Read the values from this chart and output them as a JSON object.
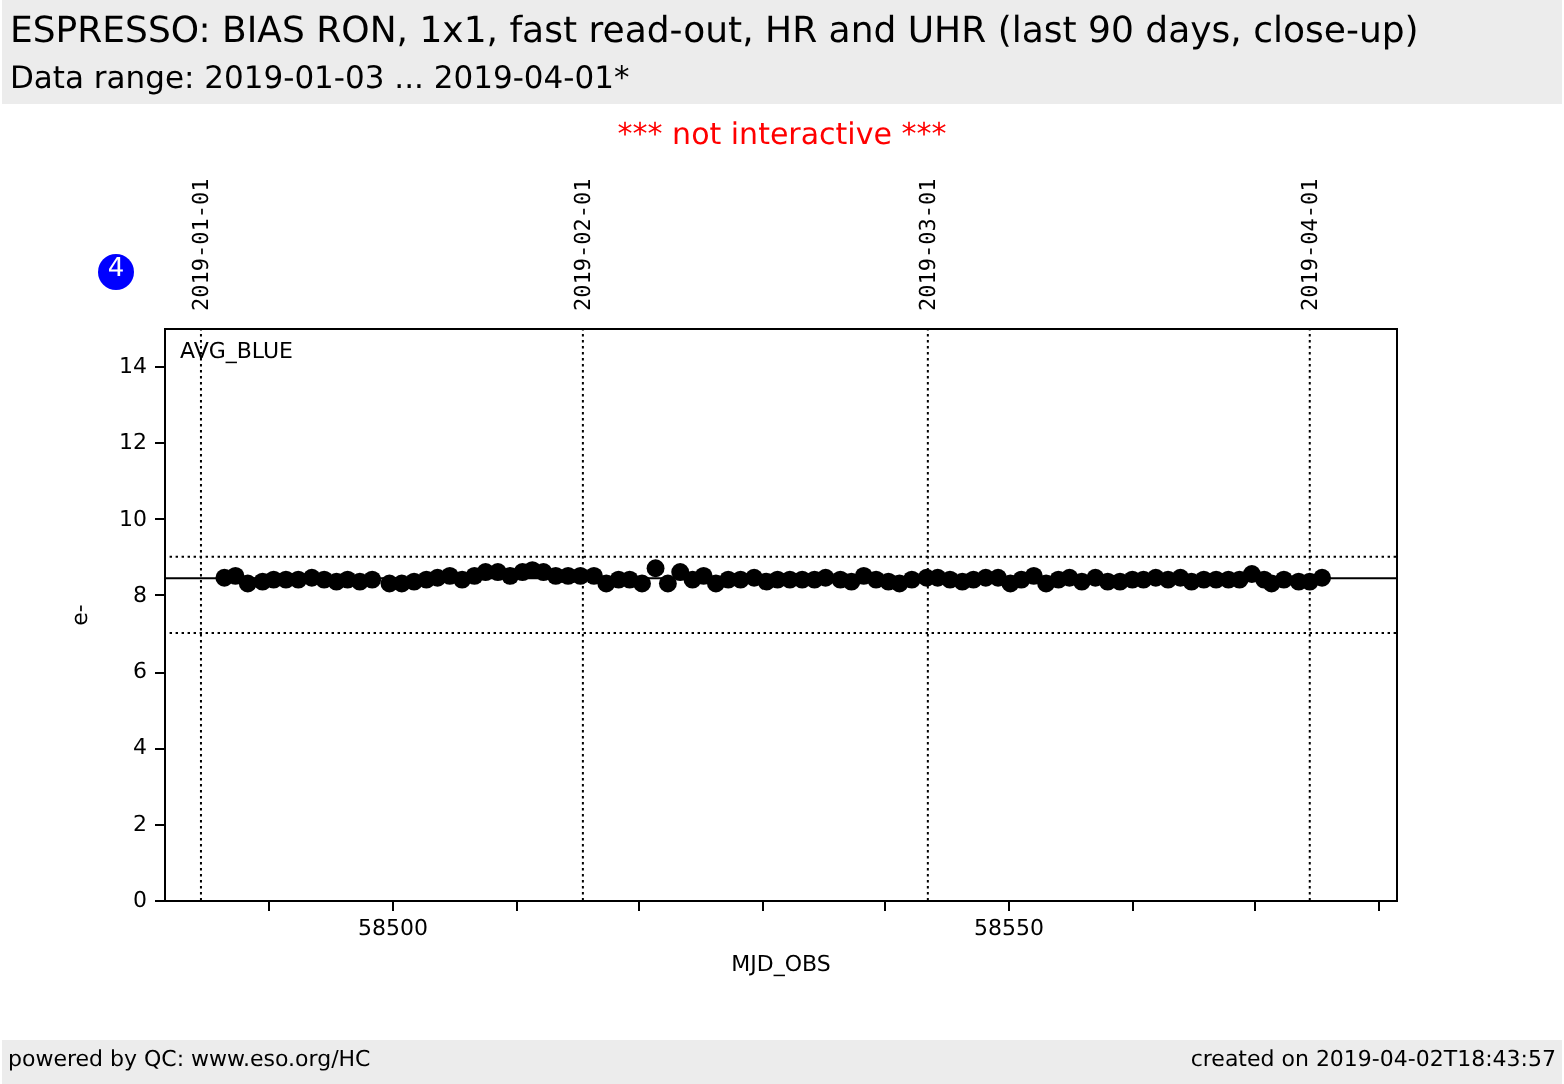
{
  "chart_data": {
    "type": "scatter",
    "title": "ESPRESSO: BIAS RON, 1x1, fast read-out, HR and UHR (last 90 days, close-up)",
    "subtitle": "Data range: 2019-01-03 ... 2019-04-01*",
    "xlabel": "MJD_OBS",
    "ylabel": "e-",
    "annotations": [
      "*** not interactive ***",
      "4",
      "AVG_BLUE",
      "powered by QC: www.eso.org/HC",
      "created on 2019-04-02T18:43:57"
    ],
    "x": [
      58486.4,
      58487.3,
      58488.3,
      58489.5,
      58490.4,
      58491.4,
      58492.4,
      58493.5,
      58494.5,
      58495.5,
      58496.4,
      58497.4,
      58498.4,
      58499.8,
      58500.8,
      58501.8,
      58502.8,
      58503.7,
      58504.7,
      58505.7,
      58506.7,
      58507.6,
      58508.6,
      58509.6,
      58510.6,
      58511.4,
      58512.3,
      58513.3,
      58514.3,
      58515.3,
      58516.4,
      58517.4,
      58518.4,
      58519.3,
      58520.3,
      58521.4,
      58522.4,
      58523.4,
      58524.4,
      58525.3,
      58526.3,
      58527.3,
      58528.3,
      58529.4,
      58530.4,
      58531.3,
      58532.3,
      58533.3,
      58534.3,
      58535.2,
      58536.4,
      58537.3,
      58538.3,
      58539.3,
      58540.3,
      58541.2,
      58542.2,
      58543.4,
      58544.3,
      58545.3,
      58546.3,
      58547.2,
      58548.2,
      58549.2,
      58550.2,
      58551.1,
      58552.1,
      58553.1,
      58554.1,
      58555.0,
      58556.0,
      58557.1,
      58558.1,
      58559.1,
      58560.1,
      58561.0,
      58562.0,
      58563.0,
      58564.0,
      58564.9,
      58565.9,
      58566.9,
      58567.9,
      58568.8,
      58569.8,
      58570.8,
      58571.4,
      58572.4,
      58573.6,
      58574.5,
      58575.5
    ],
    "series": [
      {
        "color": "#000000",
        "values": [
          8.45,
          8.5,
          8.3,
          8.35,
          8.4,
          8.4,
          8.4,
          8.45,
          8.4,
          8.35,
          8.4,
          8.35,
          8.4,
          8.3,
          8.3,
          8.35,
          8.4,
          8.45,
          8.5,
          8.4,
          8.5,
          8.6,
          8.6,
          8.5,
          8.6,
          8.65,
          8.6,
          8.5,
          8.5,
          8.5,
          8.5,
          8.3,
          8.4,
          8.4,
          8.3,
          8.7,
          8.3,
          8.6,
          8.4,
          8.5,
          8.3,
          8.4,
          8.4,
          8.45,
          8.35,
          8.4,
          8.4,
          8.4,
          8.4,
          8.45,
          8.4,
          8.35,
          8.5,
          8.4,
          8.35,
          8.3,
          8.4,
          8.45,
          8.45,
          8.4,
          8.35,
          8.4,
          8.45,
          8.45,
          8.3,
          8.4,
          8.5,
          8.3,
          8.4,
          8.45,
          8.35,
          8.45,
          8.35,
          8.35,
          8.4,
          8.4,
          8.45,
          8.4,
          8.45,
          8.35,
          8.4,
          8.4,
          8.4,
          8.4,
          8.55,
          8.4,
          8.3,
          8.4,
          8.35,
          8.35,
          8.45
        ]
      }
    ],
    "xlim": [
      58481.5,
      58581.5
    ],
    "xticks": [
      {
        "value": 58490,
        "label": null
      },
      58500,
      {
        "value": 58510,
        "label": null
      },
      {
        "value": 58520,
        "label": null
      },
      {
        "value": 58530,
        "label": null
      },
      {
        "value": 58540,
        "label": null
      },
      58550,
      {
        "value": 58560,
        "label": null
      },
      {
        "value": 58570,
        "label": null
      },
      {
        "value": 58580,
        "label": null
      }
    ],
    "x2lim": [
      "2018-12-29",
      "2019-04-08"
    ],
    "x2ticks": [
      "2019-01-01",
      "2019-02-01",
      "2019-03-01",
      "2019-04-01"
    ],
    "ylim": [
      0,
      15
    ],
    "yticks": [
      0,
      2,
      4,
      6,
      8,
      10,
      12,
      14
    ],
    "ref_lines": [
      {
        "axis": "y",
        "value": 9,
        "color": "#000000",
        "line_style": "dotted"
      },
      {
        "axis": "y",
        "value": 7,
        "color": "#000000",
        "line_style": "dotted"
      },
      {
        "axis": "y",
        "value": 8.44,
        "color": "#000000",
        "line_style": "solid"
      },
      {
        "axis": "x",
        "value": 58484.5,
        "color": "#000000",
        "line_style": "dotted"
      },
      {
        "axis": "x",
        "value": 58515.5,
        "color": "#000000",
        "line_style": "dotted"
      },
      {
        "axis": "x",
        "value": 58543.5,
        "color": "#000000",
        "line_style": "dotted"
      },
      {
        "axis": "x",
        "value": 58574.5,
        "color": "#000000",
        "line_style": "dotted"
      }
    ],
    "grid": false,
    "marker": "circle"
  }
}
